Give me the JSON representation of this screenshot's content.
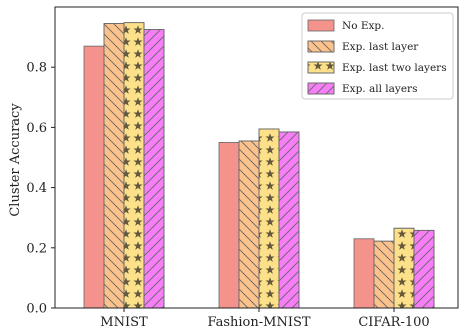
{
  "chart_data": {
    "type": "bar",
    "categories": [
      "MNIST",
      "Fashion-MNIST",
      "CIFAR-100"
    ],
    "series": [
      {
        "name": "No Exp.",
        "values": [
          0.87,
          0.55,
          0.23
        ],
        "color": "#f4928c",
        "hatch": "none"
      },
      {
        "name": "Exp. last layer",
        "values": [
          0.945,
          0.555,
          0.222
        ],
        "color": "#fcc28c",
        "hatch": "backslash"
      },
      {
        "name": "Exp. last two layers",
        "values": [
          0.948,
          0.595,
          0.265
        ],
        "color": "#fce08a",
        "hatch": "star"
      },
      {
        "name": "Exp. all layers",
        "values": [
          0.925,
          0.585,
          0.258
        ],
        "color": "#f77ef7",
        "hatch": "slash"
      }
    ],
    "xlabel": "",
    "ylabel": "Cluster Accuracy",
    "ylim": [
      0,
      1.0
    ],
    "yticks": [
      "0.0",
      "0.2",
      "0.4",
      "0.6",
      "0.8"
    ],
    "legend": "top-right",
    "grid": false
  }
}
